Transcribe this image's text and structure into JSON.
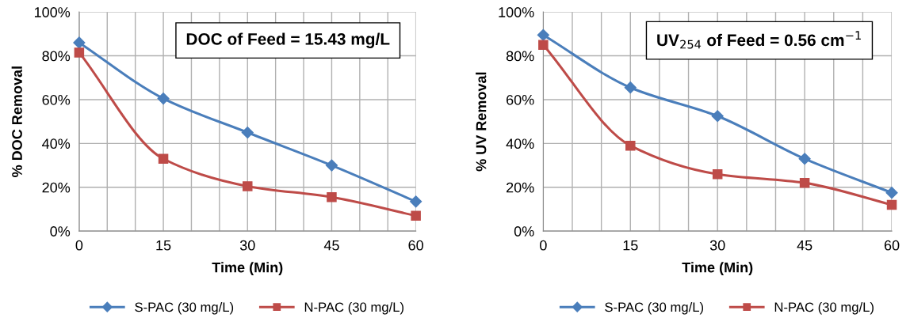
{
  "chart_data": [
    {
      "type": "line",
      "xlabel": "Time (Min)",
      "ylabel": "% DOC Removal",
      "annotations": [
        "DOC of Feed = 15.43 mg/L"
      ],
      "x": [
        0,
        15,
        30,
        45,
        60
      ],
      "series": [
        {
          "name": "S-PAC (30 mg/L)",
          "color": "#4a7ebb",
          "marker": "diamond",
          "values": [
            86,
            60.5,
            45,
            30,
            13.5
          ]
        },
        {
          "name": "N-PAC (30 mg/L)",
          "color": "#be4b48",
          "marker": "square",
          "values": [
            81.5,
            33,
            20.5,
            15.5,
            7
          ]
        }
      ],
      "xlim": [
        0,
        60
      ],
      "xticks": [
        0,
        {
          "value": 5,
          "label": null
        },
        {
          "value": 10,
          "label": null
        },
        15,
        {
          "value": 20,
          "label": null
        },
        {
          "value": 25,
          "label": null
        },
        30,
        {
          "value": 35,
          "label": null
        },
        {
          "value": 40,
          "label": null
        },
        45,
        {
          "value": 50,
          "label": null
        },
        {
          "value": 55,
          "label": null
        },
        60
      ],
      "ylim": [
        0,
        100
      ],
      "yticks": [
        {
          "value": 0,
          "label": "0%"
        },
        {
          "value": 20,
          "label": "20%"
        },
        {
          "value": 40,
          "label": "40%"
        },
        {
          "value": 60,
          "label": "60%"
        },
        {
          "value": 80,
          "label": "80%"
        },
        {
          "value": 100,
          "label": "100%"
        }
      ],
      "grid": true,
      "legend": "bottom",
      "line_style": "solid"
    },
    {
      "type": "line",
      "xlabel": "Time (Min)",
      "ylabel": "% UV Removal",
      "annotations": [
        "UV$_{254}$ of Feed = 0.56 cm$^{−1}$"
      ],
      "x": [
        0,
        15,
        30,
        45,
        60
      ],
      "series": [
        {
          "name": "S-PAC (30 mg/L)",
          "color": "#4a7ebb",
          "marker": "diamond",
          "values": [
            89.5,
            65.5,
            52.5,
            33,
            17.5
          ]
        },
        {
          "name": "N-PAC (30 mg/L)",
          "color": "#be4b48",
          "marker": "square",
          "values": [
            85,
            39,
            26,
            22,
            12
          ]
        }
      ],
      "xlim": [
        0,
        60
      ],
      "xticks": [
        0,
        {
          "value": 5,
          "label": null
        },
        {
          "value": 10,
          "label": null
        },
        15,
        {
          "value": 20,
          "label": null
        },
        {
          "value": 25,
          "label": null
        },
        30,
        {
          "value": 35,
          "label": null
        },
        {
          "value": 40,
          "label": null
        },
        45,
        {
          "value": 50,
          "label": null
        },
        {
          "value": 55,
          "label": null
        },
        60
      ],
      "ylim": [
        0,
        100
      ],
      "yticks": [
        {
          "value": 0,
          "label": "0%"
        },
        {
          "value": 20,
          "label": "20%"
        },
        {
          "value": 40,
          "label": "40%"
        },
        {
          "value": 60,
          "label": "60%"
        },
        {
          "value": 80,
          "label": "80%"
        },
        {
          "value": 100,
          "label": "100%"
        }
      ],
      "grid": true,
      "legend": "bottom",
      "line_style": "solid"
    }
  ]
}
